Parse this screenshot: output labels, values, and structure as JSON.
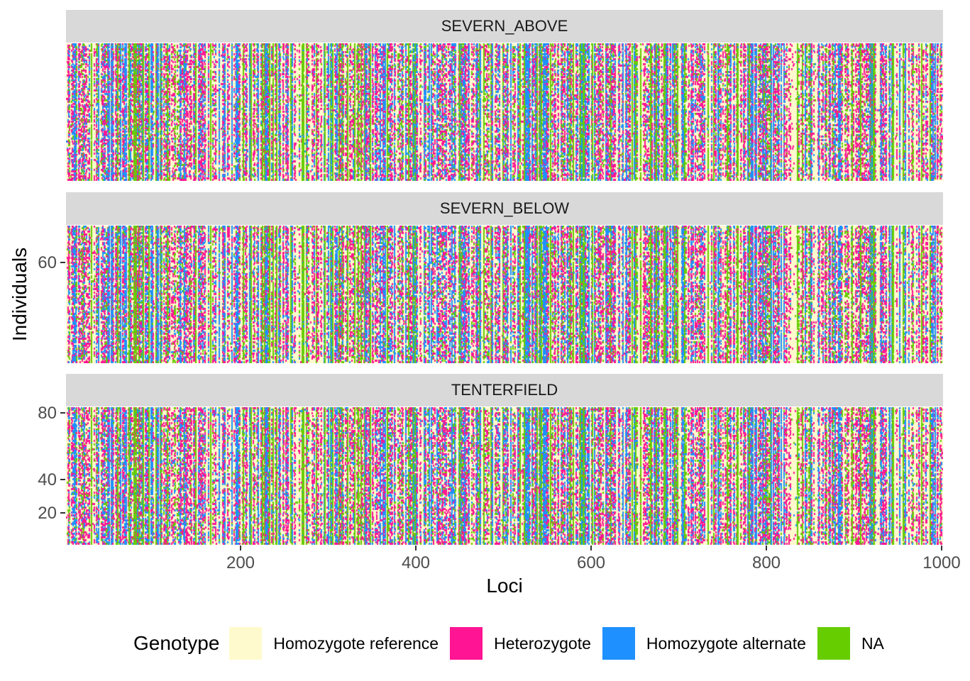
{
  "chart_data": {
    "type": "heatmap",
    "xlabel": "Loci",
    "ylabel": "Individuals",
    "xlim": [
      1,
      1000
    ],
    "x_ticks": [
      "200",
      "400",
      "600",
      "800",
      "1000"
    ],
    "x_tick_values": [
      200,
      400,
      600,
      800,
      1000
    ],
    "facets": [
      {
        "label": "SEVERN_ABOVE",
        "y_ticks": [],
        "y_tick_values": []
      },
      {
        "label": "SEVERN_BELOW",
        "y_ticks": [
          "60"
        ],
        "y_tick_values": [
          60
        ]
      },
      {
        "label": "TENTERFIELD",
        "y_ticks": [
          "80",
          "40",
          "20"
        ],
        "y_tick_values": [
          80,
          40,
          20
        ]
      }
    ],
    "individuals_per_facet_approx": 83,
    "legend": {
      "title": "Genotype",
      "placement": "bottom",
      "entries": [
        {
          "label": "Homozygote reference",
          "color": "#FFFACD",
          "approx_share": 0.6
        },
        {
          "label": "Heterozygote",
          "color": "#FF1493",
          "approx_share": 0.15
        },
        {
          "label": "Homozygote alternate",
          "color": "#1E90FF",
          "approx_share": 0.12
        },
        {
          "label": "NA",
          "color": "#66CD00",
          "approx_share": 0.13
        }
      ]
    }
  }
}
